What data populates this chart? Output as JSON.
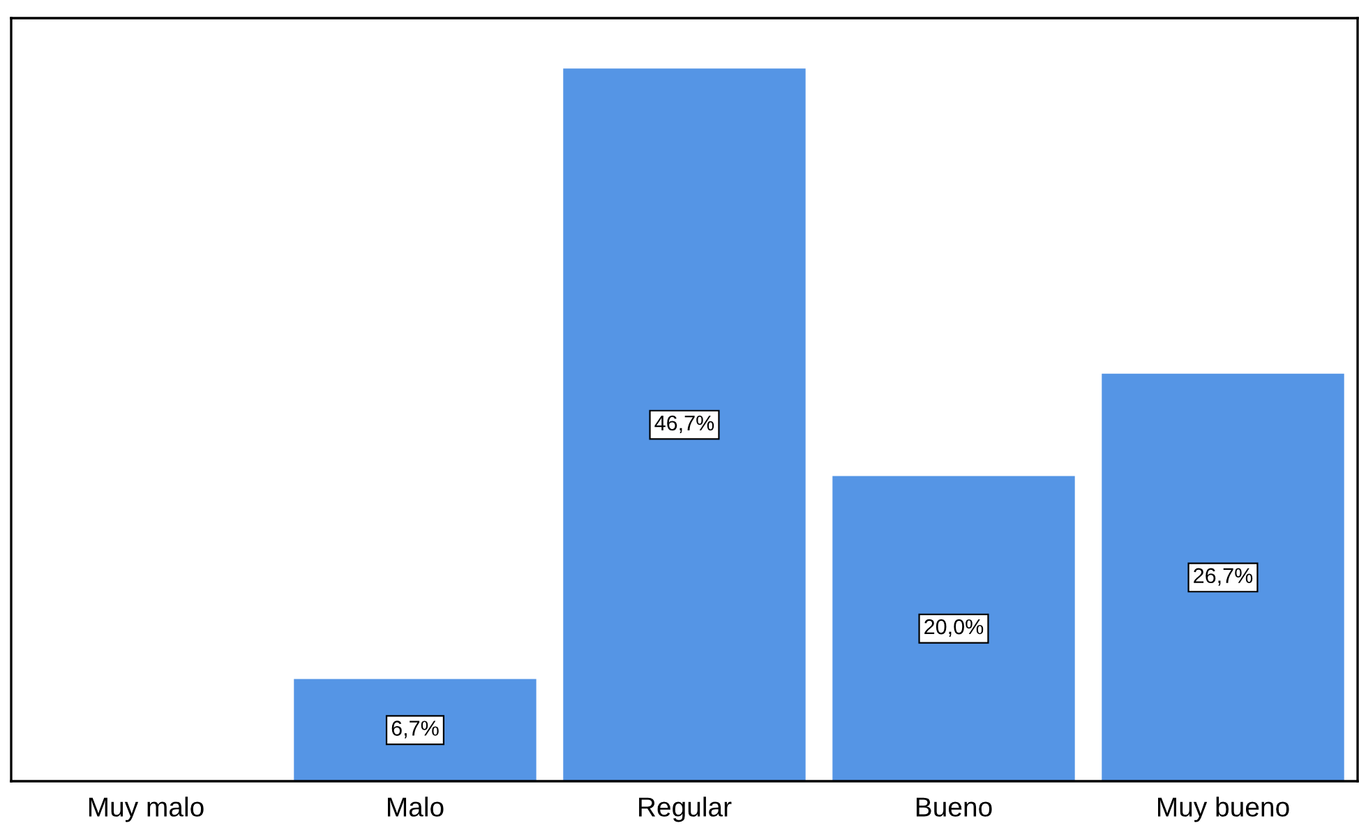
{
  "chart_data": {
    "type": "bar",
    "categories": [
      "Muy malo",
      "Malo",
      "Regular",
      "Bueno",
      "Muy bueno"
    ],
    "values": [
      0,
      6.7,
      46.7,
      20.0,
      26.7
    ],
    "value_labels": [
      null,
      "6,7%",
      "46,7%",
      "20,0%",
      "26,7%"
    ],
    "color": "#5595e5",
    "ylim": [
      0,
      50
    ],
    "tick_labels": "x",
    "grid": false,
    "legend": false
  }
}
